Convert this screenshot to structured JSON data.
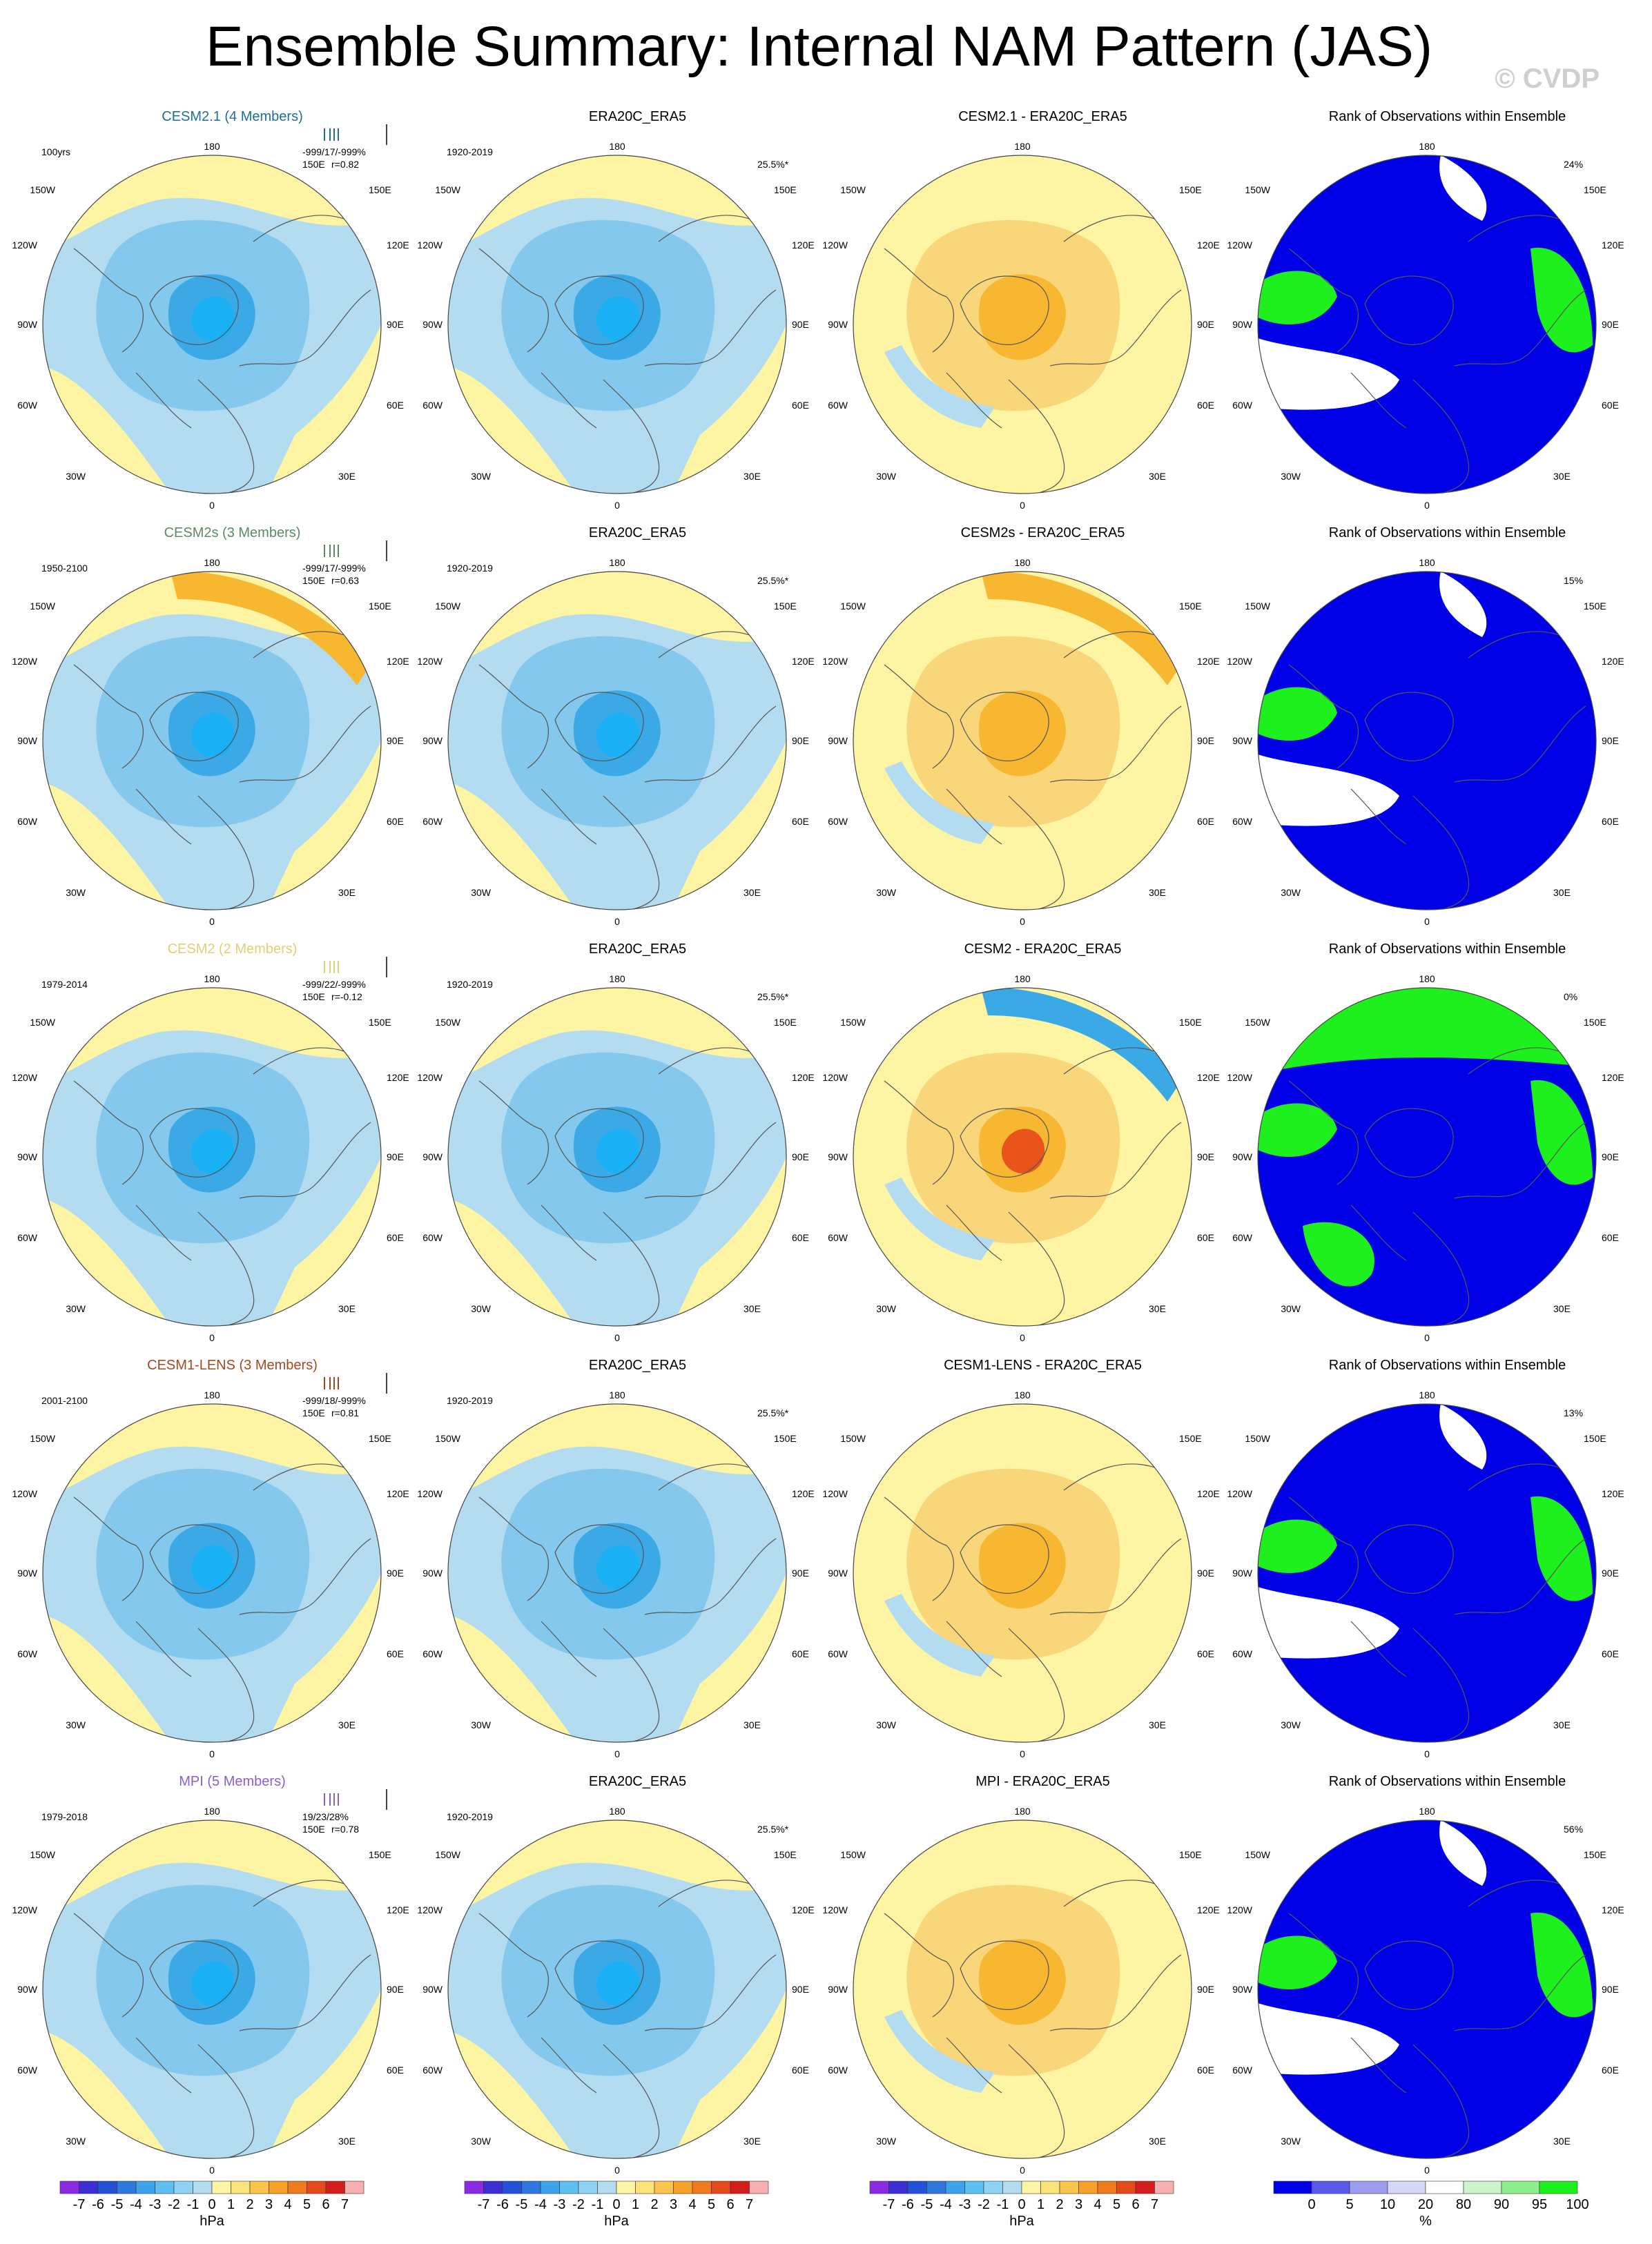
{
  "title": "Ensemble Summary: Internal NAM Pattern (JAS)",
  "watermark": "© CVDP",
  "colors": {
    "ocean_blue": "#b3dcf1",
    "light_yellow": "#fdf5a4",
    "mid_blue": "#7ec6ec",
    "deep_blue": "#3ba9e6",
    "cyan_blue": "#19b0f5",
    "orange_light": "#fad67a",
    "orange": "#f7b731",
    "orange_deep": "#f08a1c",
    "red_core": "#e8541c",
    "rank_blue": "#0000e6",
    "rank_green": "#1ef01e",
    "rank_white": "#ffffff",
    "cesm21_title": "#1d6f9c",
    "cesm2s_title": "#5b8a66",
    "cesm2_title": "#e2cf72",
    "cesm1_title": "#a14a22",
    "mpi_title": "#8a5fd6"
  },
  "map_labels": {
    "top": "180",
    "bottom": "0",
    "left_top": "150W",
    "left_upper": "120W",
    "left_mid": "90W",
    "left_lower": "60W",
    "left_bottom": "30W",
    "right_top": "150E",
    "right_upper": "120E",
    "right_mid": "90E",
    "right_lower": "60E",
    "right_bottom": "30E"
  },
  "obs_title": "ERA20C_ERA5",
  "obs_years": "1920-2019",
  "obs_pct": "25.5%*",
  "rank_title": "Rank of Observations within Ensemble",
  "rows": [
    {
      "model_title": "CESM2.1 (4 Members)",
      "title_color": "#1d6f9c",
      "years": "100yrs",
      "stats": "-999/17/-999%",
      "corr": "r=0.82",
      "lon150": "150E",
      "diff_title": "CESM2.1 - ERA20C_ERA5",
      "rank_pct": "24%"
    },
    {
      "model_title": "CESM2s (3 Members)",
      "title_color": "#5b8a66",
      "years": "1950-2100",
      "stats": "-999/17/-999%",
      "corr": "r=0.63",
      "lon150": "150E",
      "diff_title": "CESM2s - ERA20C_ERA5",
      "rank_pct": "15%"
    },
    {
      "model_title": "CESM2 (2 Members)",
      "title_color": "#e2cf72",
      "years": "1979-2014",
      "stats": "-999/22/-999%",
      "corr": "r=-0.12",
      "lon150": "150E",
      "diff_title": "CESM2 - ERA20C_ERA5",
      "rank_pct": "0%"
    },
    {
      "model_title": "CESM1-LENS (3 Members)",
      "title_color": "#a14a22",
      "years": "2001-2100",
      "stats": "-999/18/-999%",
      "corr": "r=0.81",
      "lon150": "150E",
      "diff_title": "CESM1-LENS - ERA20C_ERA5",
      "rank_pct": "13%"
    },
    {
      "model_title": "MPI (5 Members)",
      "title_color": "#8a5fd6",
      "years": "1979-2018",
      "stats": "19/23/28%",
      "corr": "r=0.78",
      "lon150": "150E",
      "diff_title": "MPI - ERA20C_ERA5",
      "rank_pct": "56%"
    }
  ],
  "colorbar_hpa": {
    "ticks": [
      "-7",
      "-6",
      "-5",
      "-4",
      "-3",
      "-2",
      "-1",
      "0",
      "1",
      "2",
      "3",
      "4",
      "5",
      "6",
      "7"
    ],
    "unit": "hPa",
    "colors": [
      "#8a2be2",
      "#3b2fd1",
      "#2452d6",
      "#2f78e0",
      "#3ca2ea",
      "#5ec0f0",
      "#8fd3f4",
      "#b3dcf1",
      "#fdf5a4",
      "#fde47a",
      "#fac54a",
      "#f6a12a",
      "#f07a1e",
      "#e54a1c",
      "#d41e1e",
      "#f7b0b0"
    ]
  },
  "colorbar_rank": {
    "ticks": [
      "0",
      "5",
      "10",
      "20",
      "80",
      "90",
      "95",
      "100"
    ],
    "unit": "%",
    "colors": [
      "#0000e6",
      "#5a5ae8",
      "#9d9df0",
      "#d6d6f7",
      "#ffffff",
      "#cdf5cd",
      "#8cee8c",
      "#1ef01e"
    ]
  },
  "chart_data": {
    "type": "heatmap",
    "title": "Ensemble Summary: Internal NAM Pattern (JAS)",
    "panel_grid": "5 rows x 4 columns of north-polar stereographic maps",
    "columns": [
      "model ensemble mean pattern",
      "ERA20C_ERA5 observations",
      "model minus observations",
      "Rank of Observations within Ensemble"
    ],
    "row_models": [
      "CESM2.1 (4 Members)",
      "CESM2s (3 Members)",
      "CESM2 (2 Members)",
      "CESM1-LENS (3 Members)",
      "MPI (5 Members)"
    ],
    "pattern_correlation_r": [
      0.82,
      0.63,
      -0.12,
      0.81,
      0.78
    ],
    "rank_percent": [
      24,
      15,
      0,
      13,
      56
    ],
    "obs_variance_percent": 25.5,
    "colorbar_units": [
      "hPa",
      "hPa",
      "hPa",
      "%"
    ],
    "hPa_levels": [
      -7,
      -6,
      -5,
      -4,
      -3,
      -2,
      -1,
      0,
      1,
      2,
      3,
      4,
      5,
      6,
      7
    ],
    "rank_levels": [
      0,
      5,
      10,
      20,
      80,
      90,
      95,
      100
    ]
  }
}
